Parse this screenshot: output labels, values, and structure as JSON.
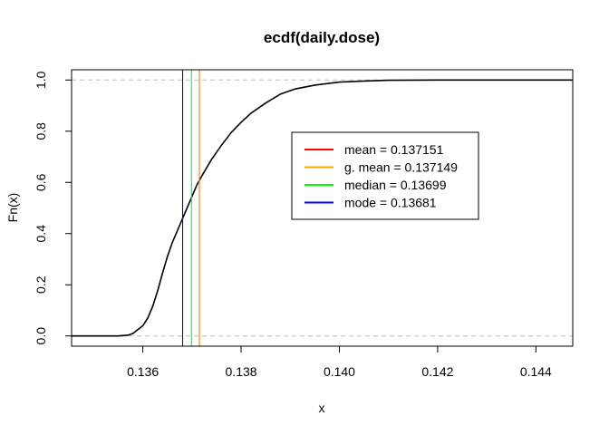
{
  "chart_data": {
    "type": "line",
    "title": "ecdf(daily.dose)",
    "xlabel": "x",
    "ylabel": "Fn(x)",
    "xlim": [
      0.13455,
      0.14475
    ],
    "ylim": [
      -0.04,
      1.04
    ],
    "x_ticks": [
      {
        "value": 0.136,
        "label": "0.136"
      },
      {
        "value": 0.138,
        "label": "0.138"
      },
      {
        "value": 0.14,
        "label": "0.140"
      },
      {
        "value": 0.142,
        "label": "0.142"
      },
      {
        "value": 0.144,
        "label": "0.144"
      }
    ],
    "y_ticks": [
      {
        "value": 0.0,
        "label": "0.0"
      },
      {
        "value": 0.2,
        "label": "0.2"
      },
      {
        "value": 0.4,
        "label": "0.4"
      },
      {
        "value": 0.6,
        "label": "0.6"
      },
      {
        "value": 0.8,
        "label": "0.8"
      },
      {
        "value": 1.0,
        "label": "1.0"
      }
    ],
    "reference_lines": [
      0.0,
      1.0
    ],
    "ecdf": {
      "x": [
        0.13455,
        0.1355,
        0.1357,
        0.1358,
        0.1359,
        0.136,
        0.1361,
        0.1362,
        0.1363,
        0.1364,
        0.1365,
        0.1366,
        0.1367,
        0.1368,
        0.1369,
        0.137,
        0.1371,
        0.1372,
        0.1374,
        0.1376,
        0.1378,
        0.138,
        0.1382,
        0.1385,
        0.1388,
        0.1391,
        0.1395,
        0.14,
        0.1405,
        0.141,
        0.142,
        0.143,
        0.14475
      ],
      "y": [
        0.0,
        0.0,
        0.003,
        0.01,
        0.025,
        0.04,
        0.07,
        0.115,
        0.175,
        0.245,
        0.31,
        0.365,
        0.41,
        0.455,
        0.5,
        0.545,
        0.59,
        0.625,
        0.69,
        0.745,
        0.795,
        0.835,
        0.87,
        0.91,
        0.945,
        0.965,
        0.98,
        0.992,
        0.996,
        0.999,
        1.0,
        1.0,
        1.0
      ]
    },
    "stat_lines": [
      {
        "name": "mean",
        "label": "mean = 0.137151",
        "value": 0.137151,
        "color": "#ff0000"
      },
      {
        "name": "geometric-mean",
        "label": "g. mean = 0.137149",
        "value": 0.137149,
        "color": "#ffa500"
      },
      {
        "name": "median",
        "label": "median = 0.13699",
        "value": 0.13699,
        "color": "#00ff00"
      },
      {
        "name": "mode",
        "label": "mode = 0.13681",
        "value": 0.13681,
        "color": "#0000ff"
      }
    ],
    "legend_position": "center-right",
    "grid": false
  }
}
